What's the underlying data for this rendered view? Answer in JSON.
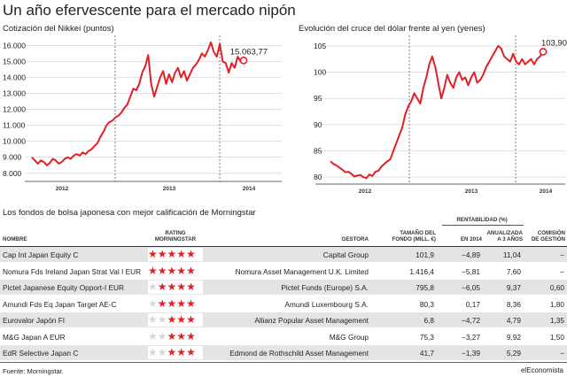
{
  "title": "Un año efervescente para el mercado nipón",
  "chart_data": [
    {
      "type": "line",
      "title": "Cotización del Nikkei (puntos)",
      "x_tick_labels": [
        "2012",
        "2013",
        "2014"
      ],
      "y_ticks": [
        "8.000",
        "9.000",
        "10.000",
        "11.000",
        "12.000",
        "13.000",
        "14.000",
        "15.000",
        "16.000"
      ],
      "y_values": [
        8000,
        9000,
        10000,
        11000,
        12000,
        13000,
        14000,
        15000,
        16000
      ],
      "ylim": [
        7600,
        16300
      ],
      "end_label": "15.063,77",
      "last_value": 15063.77,
      "color": "#e31f26",
      "series": [
        {
          "values": [
            9000,
            8800,
            8600,
            8800,
            8700,
            8500,
            8650,
            8900,
            8800,
            8600,
            8700,
            8900,
            9000,
            8900,
            9100,
            9200,
            9100,
            9300,
            9200,
            9400,
            9500,
            9700,
            9900,
            10300,
            10600,
            11000,
            11200,
            11300,
            11500,
            11600,
            11800,
            12100,
            12300,
            12800,
            13300,
            13200,
            13600,
            14300,
            14700,
            15400,
            13600,
            12800,
            13400,
            14000,
            14400,
            13600,
            14200,
            13700,
            14300,
            14600,
            14000,
            14400,
            13800,
            14200,
            14600,
            14800,
            15100,
            15500,
            15300,
            15700,
            16200,
            15600,
            15300,
            16100,
            15000,
            14900,
            14300,
            14900,
            14600,
            15300,
            15000,
            15064
          ]
        }
      ]
    },
    {
      "type": "line",
      "title": "Evolución del cruce del dólar frente al yen (yenes)",
      "x_tick_labels": [
        "2012",
        "2013",
        "2014"
      ],
      "y_ticks": [
        "80",
        "85",
        "90",
        "95",
        "100",
        "105"
      ],
      "y_values": [
        80,
        85,
        90,
        95,
        100,
        105
      ],
      "ylim": [
        79,
        106
      ],
      "end_label": "103,90",
      "last_value": 103.9,
      "color": "#e31f26",
      "series": [
        {
          "values": [
            83,
            82.5,
            82.2,
            81.8,
            81.4,
            80.9,
            81,
            80.6,
            80.1,
            80.3,
            80.4,
            80,
            79.8,
            80.5,
            80.2,
            81,
            81.2,
            82,
            82.5,
            83,
            83.4,
            85,
            86.5,
            88,
            89.5,
            92,
            93.5,
            94.5,
            96,
            95,
            94,
            97,
            99,
            101.5,
            103,
            101,
            98,
            95,
            97,
            99.5,
            98,
            97,
            99,
            100,
            98.5,
            99,
            97.5,
            99,
            100,
            98,
            98.5,
            99.5,
            101,
            102,
            103,
            104,
            105,
            104.5,
            103,
            102.5,
            102,
            103.5,
            102,
            101.5,
            102.5,
            101.5,
            102,
            102.5,
            101.5,
            102.5,
            103,
            103.9
          ]
        }
      ]
    }
  ],
  "table_title": "Los fondos de bolsa japonesa con mejor calificación de Morningstar",
  "table": {
    "headers": {
      "nombre": "NOMBRE",
      "rating_1": "RATING",
      "rating_2": "MORNINGSTAR",
      "gestora": "GESTORA",
      "tamano_1": "TAMAÑO DEL",
      "tamano_2": "FONDO (MILL. €)",
      "rentabilidad": "RENTABILIDAD (%)",
      "en2014": "EN 2014",
      "anual_1": "ANUALIZADA",
      "anual_2": "A 3 AÑOS",
      "comision_1": "COMISIÓN",
      "comision_2": "DE GESTIÓN"
    },
    "rows": [
      {
        "nombre": "Cap Int Japan Equity C",
        "rating": 5,
        "gestora": "Capital Group",
        "tamano": "101,9",
        "en2014": "−4,89",
        "anual": "11,04",
        "comision": "−"
      },
      {
        "nombre": "Nomura Fds Ireland Japan Strat Val I EUR",
        "rating": 5,
        "gestora": "Nomura Asset Management U.K. Limited",
        "tamano": "1.416,4",
        "en2014": "−5,81",
        "anual": "7,60",
        "comision": "−"
      },
      {
        "nombre": "Pictet Japanese Equity Opport-I EUR",
        "rating": 4,
        "gestora": "Pictet Funds (Europe) S.A.",
        "tamano": "795,8",
        "en2014": "−6,05",
        "anual": "9,37",
        "comision": "0,60"
      },
      {
        "nombre": "Amundi Fds Eq Japan Target AE-C",
        "rating": 4,
        "gestora": "Amundi Luxembourg S.A.",
        "tamano": "80,3",
        "en2014": "0,17",
        "anual": "8,36",
        "comision": "1,80"
      },
      {
        "nombre": "Eurovalor Japón FI",
        "rating": 3,
        "gestora": "Allianz Popular Asset Management",
        "tamano": "6,8",
        "en2014": "−4,72",
        "anual": "4,79",
        "comision": "1,35"
      },
      {
        "nombre": "M&G Japan A EUR",
        "rating": 3,
        "gestora": "M&G Group",
        "tamano": "75,3",
        "en2014": "−3,27",
        "anual": "9,92",
        "comision": "1,50"
      },
      {
        "nombre": "EdR Selective Japan C",
        "rating": 3,
        "gestora": "Edmond de Rothschild Asset Management",
        "tamano": "41,7",
        "en2014": "−1,39",
        "anual": "5,29",
        "comision": "−"
      }
    ]
  },
  "source": "Fuente: Morningstar.",
  "credit": "elEconomista"
}
